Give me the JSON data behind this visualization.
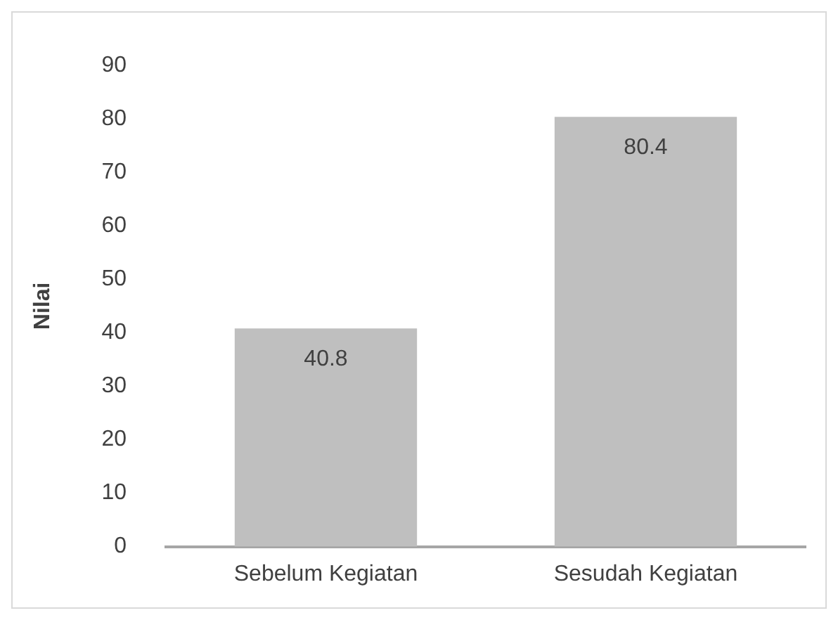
{
  "chart_data": {
    "type": "bar",
    "ylabel": "Nilai",
    "categories": [
      "Sebelum Kegiatan",
      "Sesudah Kegiatan"
    ],
    "values": [
      40.8,
      80.4
    ],
    "color": "#bfbfbf",
    "ylim": [
      0,
      90
    ],
    "yticks": [
      0,
      10,
      20,
      30,
      40,
      50,
      60,
      70,
      80,
      90
    ],
    "grid": false,
    "legend": false,
    "data_labels": true
  }
}
